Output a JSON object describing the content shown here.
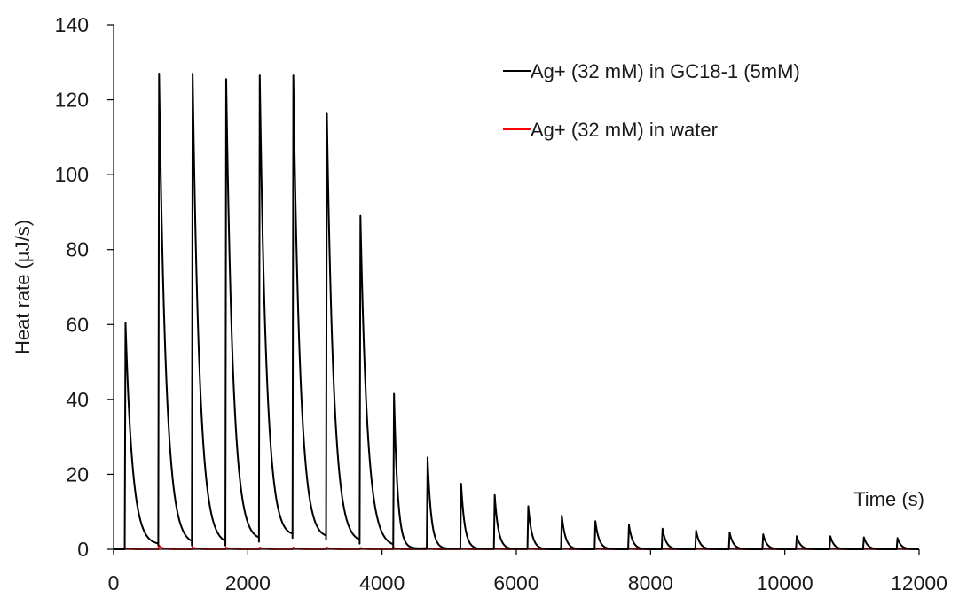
{
  "chart_data": {
    "type": "line",
    "xlabel": "Time (s)",
    "ylabel": "Heat rate (µJ/s)",
    "xlim": [
      0,
      12000
    ],
    "ylim": [
      0,
      140
    ],
    "xticks": [
      0,
      2000,
      4000,
      6000,
      8000,
      10000,
      12000
    ],
    "yticks": [
      0,
      20,
      40,
      60,
      80,
      100,
      120,
      140
    ],
    "x_tick_labels": [
      "0",
      "2000",
      "4000",
      "6000",
      "8000",
      "10000",
      "12000"
    ],
    "y_tick_labels": [
      "0",
      "20",
      "40",
      "60",
      "80",
      "100",
      "120",
      "140"
    ],
    "grid": false,
    "legend_position": "top-right",
    "series": [
      {
        "name": "Ag+ (32 mM) in GC18-1 (5mM)",
        "color": "#000000",
        "injection_times": [
          170,
          670,
          1170,
          1670,
          2170,
          2670,
          3170,
          3670,
          4170,
          4670,
          5170,
          5670,
          6170,
          6670,
          7170,
          7670,
          8170,
          8670,
          9170,
          9670,
          10170,
          10670,
          11170,
          11670
        ],
        "peak_values": [
          60.5,
          127,
          127,
          125.5,
          126.5,
          126.5,
          116.5,
          89,
          41.5,
          24.5,
          17.5,
          14.5,
          11.5,
          9,
          7.5,
          6.5,
          5.5,
          5,
          4.5,
          4,
          3.5,
          3.5,
          3.2,
          3
        ],
        "pre_injection_baseline": [
          0,
          1,
          1,
          1,
          2,
          3,
          2.5,
          1.5,
          0.5,
          0.3,
          0.2,
          0.1,
          0.1,
          0,
          0,
          0,
          0,
          0,
          0,
          0,
          0,
          0,
          0,
          0
        ]
      },
      {
        "name": "Ag+ (32 mM) in water",
        "color": "#ff0000",
        "injection_times": [
          170,
          670,
          1170,
          1670,
          2170,
          2670,
          3170,
          3670,
          4170,
          4670,
          5170,
          5670,
          6170,
          6670,
          7170,
          7670,
          8170,
          8670,
          9170,
          9670,
          10170,
          10670,
          11170,
          11670
        ],
        "peak_values": [
          0.3,
          1,
          0.6,
          0.5,
          0.5,
          0.5,
          0.5,
          0.4,
          0.4,
          0.3,
          0.3,
          0.3,
          0.3,
          0.3,
          0.3,
          0.3,
          0.3,
          0.3,
          0.3,
          0.3,
          0.3,
          0.3,
          0.3,
          0.3
        ],
        "pre_injection_baseline": [
          0,
          0,
          0,
          0,
          0,
          0,
          0,
          0,
          0,
          0,
          0,
          0,
          0,
          0,
          0,
          0,
          0,
          0,
          0,
          0,
          0,
          0,
          0,
          0
        ]
      }
    ]
  }
}
